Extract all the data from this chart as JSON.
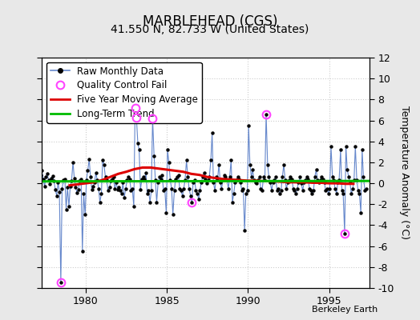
{
  "title": "MARBLEHEAD (CGS)",
  "subtitle": "41.550 N, 82.733 W (United States)",
  "ylabel": "Temperature Anomaly (°C)",
  "credit": "Berkeley Earth",
  "ylim": [
    -10,
    12
  ],
  "xlim": [
    1977.3,
    1997.5
  ],
  "xticks": [
    1980,
    1985,
    1990,
    1995
  ],
  "yticks": [
    -10,
    -8,
    -6,
    -4,
    -2,
    0,
    2,
    4,
    6,
    8,
    10,
    12
  ],
  "bg_color": "#e8e8e8",
  "plot_bg_color": "#ffffff",
  "raw_x": [
    1977.04,
    1977.12,
    1977.21,
    1977.29,
    1977.37,
    1977.46,
    1977.54,
    1977.62,
    1977.71,
    1977.79,
    1977.87,
    1977.96,
    1978.04,
    1978.12,
    1978.21,
    1978.29,
    1978.37,
    1978.46,
    1978.54,
    1978.62,
    1978.71,
    1978.79,
    1978.87,
    1978.96,
    1979.04,
    1979.12,
    1979.21,
    1979.29,
    1979.37,
    1979.46,
    1979.54,
    1979.62,
    1979.71,
    1979.79,
    1979.87,
    1979.96,
    1980.04,
    1980.12,
    1980.21,
    1980.29,
    1980.37,
    1980.46,
    1980.54,
    1980.62,
    1980.71,
    1980.79,
    1980.87,
    1980.96,
    1981.04,
    1981.12,
    1981.21,
    1981.29,
    1981.37,
    1981.46,
    1981.54,
    1981.62,
    1981.71,
    1981.79,
    1981.87,
    1981.96,
    1982.04,
    1982.12,
    1982.21,
    1982.29,
    1982.37,
    1982.46,
    1982.54,
    1982.62,
    1982.71,
    1982.79,
    1982.87,
    1982.96,
    1983.04,
    1983.12,
    1983.21,
    1983.29,
    1983.37,
    1983.46,
    1983.54,
    1983.62,
    1983.71,
    1983.79,
    1983.87,
    1983.96,
    1984.04,
    1984.12,
    1984.21,
    1984.29,
    1984.37,
    1984.46,
    1984.54,
    1984.62,
    1984.71,
    1984.79,
    1984.87,
    1984.96,
    1985.04,
    1985.12,
    1985.21,
    1985.29,
    1985.37,
    1985.46,
    1985.54,
    1985.62,
    1985.71,
    1985.79,
    1985.87,
    1985.96,
    1986.04,
    1986.12,
    1986.21,
    1986.29,
    1986.37,
    1986.46,
    1986.54,
    1986.62,
    1986.71,
    1986.79,
    1986.87,
    1986.96,
    1987.04,
    1987.12,
    1987.21,
    1987.29,
    1987.37,
    1987.46,
    1987.54,
    1987.62,
    1987.71,
    1987.79,
    1987.87,
    1987.96,
    1988.04,
    1988.12,
    1988.21,
    1988.29,
    1988.37,
    1988.46,
    1988.54,
    1988.62,
    1988.71,
    1988.79,
    1988.87,
    1988.96,
    1989.04,
    1989.12,
    1989.21,
    1989.29,
    1989.37,
    1989.46,
    1989.54,
    1989.62,
    1989.71,
    1989.79,
    1989.87,
    1989.96,
    1990.04,
    1990.12,
    1990.21,
    1990.29,
    1990.37,
    1990.46,
    1990.54,
    1990.62,
    1990.71,
    1990.79,
    1990.87,
    1990.96,
    1991.04,
    1991.12,
    1991.21,
    1991.29,
    1991.37,
    1991.46,
    1991.54,
    1991.62,
    1991.71,
    1991.79,
    1991.87,
    1991.96,
    1992.04,
    1992.12,
    1992.21,
    1992.29,
    1992.37,
    1992.46,
    1992.54,
    1992.62,
    1992.71,
    1992.79,
    1992.87,
    1992.96,
    1993.04,
    1993.12,
    1993.21,
    1993.29,
    1993.37,
    1993.46,
    1993.54,
    1993.62,
    1993.71,
    1993.79,
    1993.87,
    1993.96,
    1994.04,
    1994.12,
    1994.21,
    1994.29,
    1994.37,
    1994.46,
    1994.54,
    1994.62,
    1994.71,
    1994.79,
    1994.87,
    1994.96,
    1995.04,
    1995.12,
    1995.21,
    1995.29,
    1995.37,
    1995.46,
    1995.54,
    1995.62,
    1995.71,
    1995.79,
    1995.87,
    1995.96,
    1996.04,
    1996.12,
    1996.21,
    1996.29,
    1996.37,
    1996.46,
    1996.54,
    1996.62,
    1996.71,
    1996.79,
    1996.87,
    1996.96,
    1997.04,
    1997.12,
    1997.21,
    1997.29
  ],
  "raw_y": [
    1.0,
    0.5,
    0.8,
    1.2,
    0.4,
    -0.3,
    0.6,
    0.9,
    0.3,
    -0.1,
    0.5,
    0.7,
    0.2,
    -0.6,
    -1.2,
    0.1,
    -0.8,
    -9.5,
    -0.5,
    0.3,
    0.4,
    -2.5,
    -0.4,
    -2.2,
    -0.3,
    0.2,
    2.0,
    0.5,
    -0.4,
    -0.9,
    -0.6,
    0.2,
    0.4,
    -6.5,
    -1.0,
    -3.0,
    0.3,
    1.2,
    2.3,
    0.6,
    -0.6,
    -0.3,
    0.1,
    1.0,
    0.3,
    -0.5,
    -1.8,
    -1.0,
    2.2,
    1.8,
    0.6,
    0.3,
    -0.7,
    -0.4,
    0.2,
    0.4,
    0.6,
    -0.5,
    0.1,
    -0.6,
    -0.4,
    -0.7,
    -1.0,
    0.1,
    -1.4,
    -0.5,
    0.3,
    0.6,
    0.4,
    -0.7,
    -0.5,
    -2.2,
    7.2,
    6.3,
    3.8,
    3.2,
    -0.6,
    0.4,
    0.6,
    0.4,
    1.0,
    -1.0,
    -0.7,
    -1.8,
    -0.7,
    6.2,
    2.6,
    0.3,
    -1.8,
    0.1,
    0.6,
    0.4,
    0.8,
    -0.7,
    -0.5,
    -2.8,
    3.2,
    2.0,
    0.3,
    -0.5,
    -3.0,
    -0.7,
    0.4,
    0.6,
    0.8,
    -0.5,
    -0.7,
    -1.2,
    -0.5,
    0.3,
    2.2,
    0.6,
    -0.5,
    -1.2,
    -1.8,
    0.1,
    0.3,
    -0.7,
    -1.0,
    -1.5,
    -0.7,
    0.1,
    0.6,
    1.0,
    0.4,
    0.0,
    0.3,
    0.6,
    2.2,
    4.8,
    0.1,
    -0.7,
    0.6,
    0.3,
    1.8,
    0.1,
    -0.5,
    0.3,
    0.8,
    0.6,
    0.3,
    -0.5,
    0.6,
    2.2,
    -1.8,
    -1.0,
    0.1,
    0.3,
    0.6,
    0.4,
    0.1,
    -0.7,
    -0.5,
    -4.5,
    -1.0,
    -0.7,
    5.5,
    1.8,
    0.6,
    1.3,
    0.3,
    0.1,
    0.0,
    0.3,
    0.6,
    -0.5,
    -0.7,
    0.6,
    0.3,
    6.6,
    1.8,
    0.6,
    0.1,
    -0.7,
    0.1,
    0.3,
    0.6,
    -0.7,
    -0.5,
    -1.0,
    -0.7,
    0.6,
    1.8,
    0.3,
    -0.5,
    0.1,
    0.3,
    0.6,
    0.4,
    -0.5,
    -0.7,
    -1.0,
    -0.5,
    0.1,
    0.6,
    0.0,
    -0.7,
    0.1,
    0.3,
    0.6,
    0.4,
    -0.5,
    -0.7,
    -1.0,
    -0.7,
    0.6,
    1.3,
    0.3,
    0.1,
    0.3,
    0.6,
    0.4,
    0.1,
    -0.7,
    -0.5,
    -1.0,
    -0.5,
    3.5,
    0.6,
    0.3,
    -0.5,
    -1.0,
    0.1,
    0.3,
    3.2,
    -0.7,
    -1.0,
    -4.8,
    3.5,
    1.3,
    0.6,
    0.1,
    -1.0,
    -0.5,
    0.3,
    3.5,
    0.3,
    -0.7,
    -1.0,
    -2.8,
    3.2,
    0.6,
    -0.7,
    -0.5
  ],
  "qc_fail_x": [
    1978.46,
    1983.04,
    1983.12,
    1984.12,
    1986.54,
    1991.12,
    1995.96
  ],
  "qc_fail_y": [
    -9.5,
    7.2,
    6.3,
    6.2,
    -1.8,
    6.6,
    -4.8
  ],
  "moving_avg_x": [
    1979.0,
    1979.5,
    1980.0,
    1980.5,
    1981.0,
    1981.5,
    1982.0,
    1982.5,
    1983.0,
    1983.5,
    1984.0,
    1984.5,
    1985.0,
    1985.5,
    1986.0,
    1986.5,
    1987.0,
    1987.5,
    1988.0,
    1988.5,
    1989.0,
    1989.5,
    1990.0,
    1990.5,
    1991.0,
    1991.5,
    1992.0,
    1992.5,
    1993.0,
    1993.5,
    1994.0,
    1994.5,
    1995.0,
    1995.5,
    1996.0,
    1996.5
  ],
  "moving_avg_y": [
    -0.2,
    -0.1,
    0.0,
    0.1,
    0.3,
    0.6,
    0.9,
    1.1,
    1.35,
    1.5,
    1.5,
    1.4,
    1.3,
    1.2,
    1.1,
    0.9,
    0.8,
    0.6,
    0.5,
    0.4,
    0.35,
    0.3,
    0.25,
    0.25,
    0.2,
    0.2,
    0.15,
    0.1,
    0.1,
    0.1,
    0.05,
    0.05,
    0.0,
    0.0,
    -0.05,
    -0.05
  ],
  "trend_x": [
    1977.3,
    1997.5
  ],
  "trend_y": [
    0.18,
    0.22
  ],
  "raw_line_color": "#6688cc",
  "raw_marker_color": "#000000",
  "qc_color": "#ff44ff",
  "moving_avg_color": "#dd0000",
  "trend_color": "#00bb00",
  "grid_color": "#cccccc",
  "title_fontsize": 12,
  "subtitle_fontsize": 10,
  "ylabel_fontsize": 9,
  "tick_fontsize": 9,
  "legend_fontsize": 8.5,
  "credit_fontsize": 8
}
